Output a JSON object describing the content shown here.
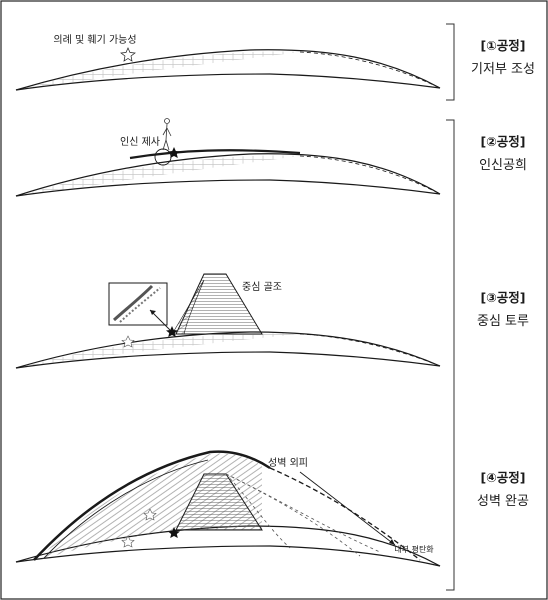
{
  "stages": [
    {
      "title": "[①공정]",
      "name": "기저부 조성"
    },
    {
      "title": "[②공정]",
      "name": "인신공희"
    },
    {
      "title": "[③공정]",
      "name": "중심 토루"
    },
    {
      "title": "[④공정]",
      "name": "성벽 완공"
    }
  ],
  "annotations": {
    "ritual": "의례 및 훼기 가능성",
    "sacrifice": "인신 제사",
    "core": "중심 골조",
    "outer_wall": "성벽 외피",
    "inner_leveling": "내부 평탄화"
  },
  "colors": {
    "line": "#1a1a1a",
    "hatch": "#555555",
    "bracket": "#333333",
    "border": "#222222"
  }
}
